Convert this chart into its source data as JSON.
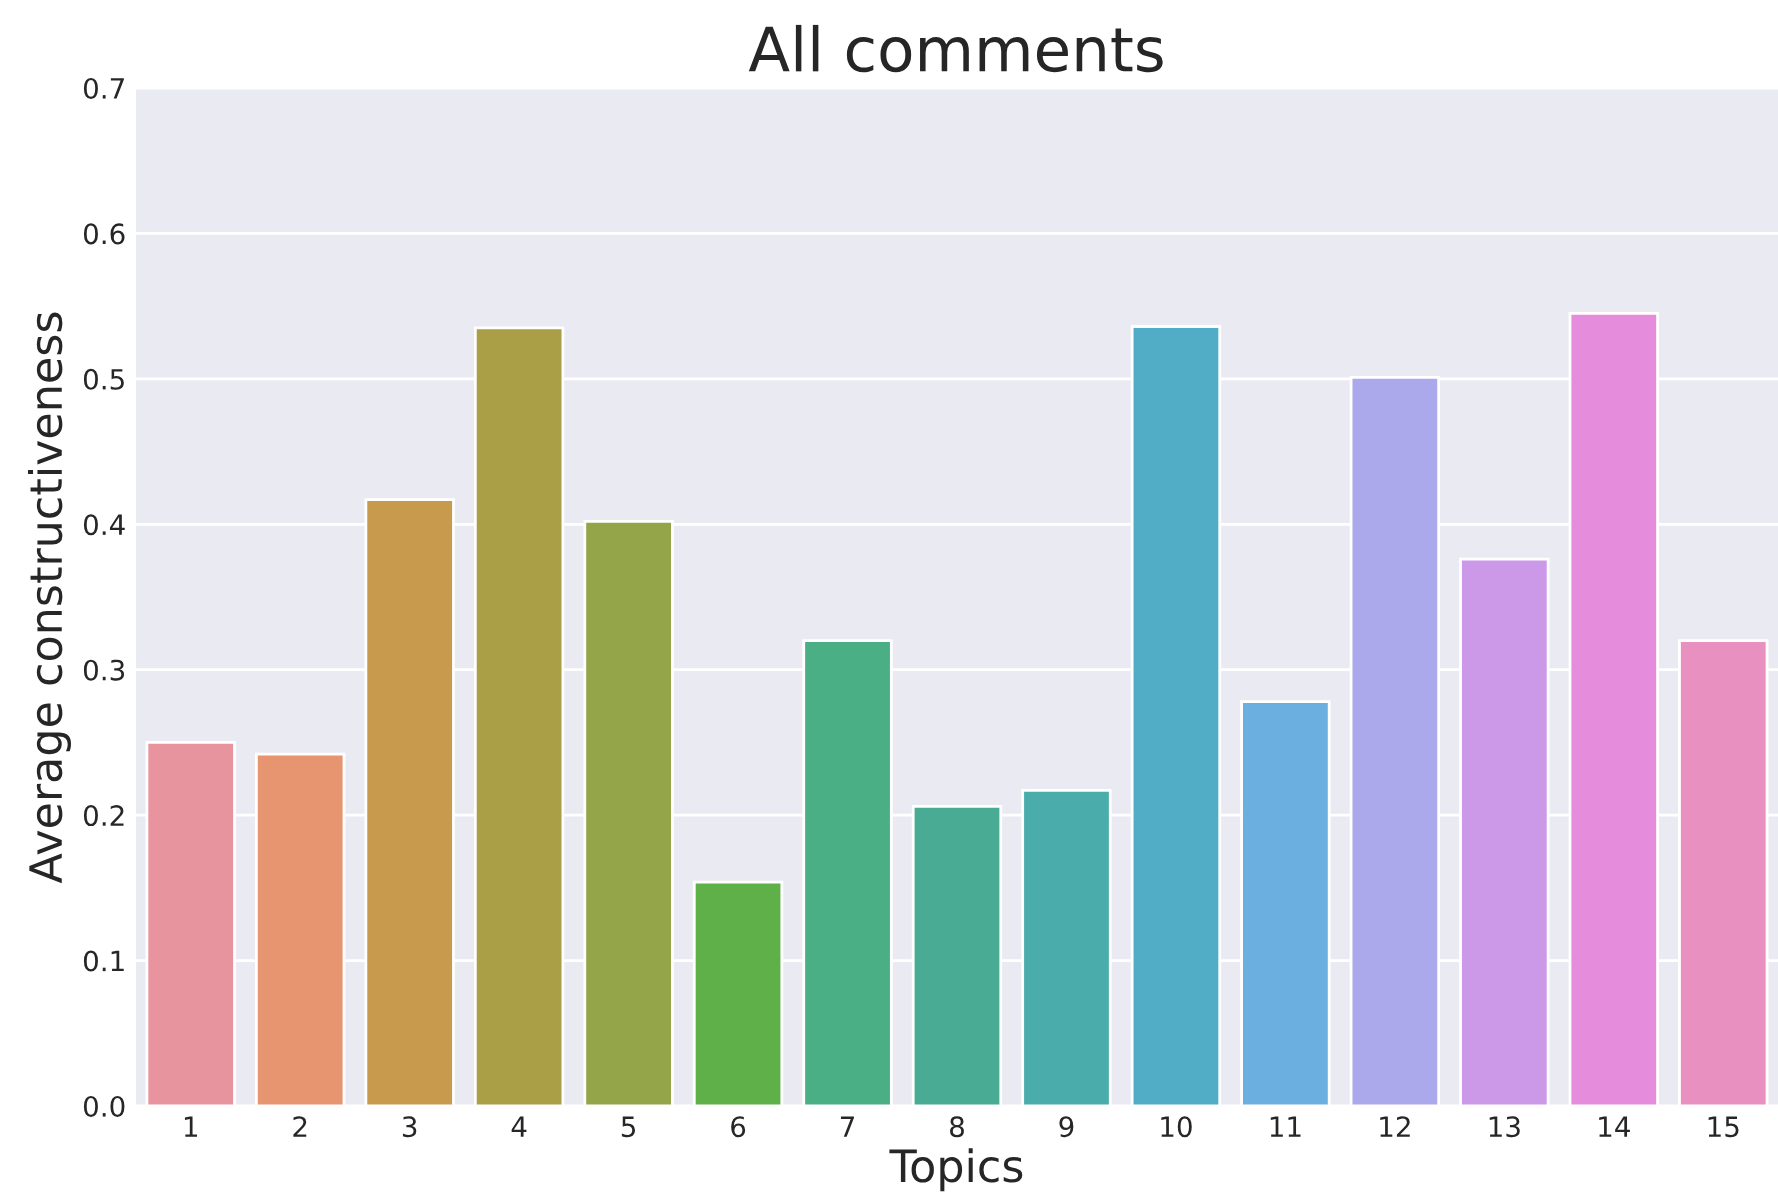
{
  "chart_data": {
    "type": "bar",
    "title": "All comments",
    "xlabel": "Topics",
    "ylabel": "Average constructiveness",
    "categories": [
      "1",
      "2",
      "3",
      "4",
      "5",
      "6",
      "7",
      "8",
      "9",
      "10",
      "11",
      "12",
      "13",
      "14",
      "15"
    ],
    "values": [
      0.25,
      0.242,
      0.417,
      0.535,
      0.402,
      0.154,
      0.32,
      0.206,
      0.217,
      0.536,
      0.278,
      0.501,
      0.376,
      0.545,
      0.32
    ],
    "colors": [
      "#e8949e",
      "#e69570",
      "#c89a4e",
      "#aa9e46",
      "#93a548",
      "#60b04a",
      "#4aaf85",
      "#4aab95",
      "#4badab",
      "#51adc5",
      "#6aafe0",
      "#aba9ec",
      "#cc99e8",
      "#e58ddc",
      "#e891c1"
    ],
    "ylim": [
      0,
      0.7
    ],
    "yticks": [
      {
        "value": 0,
        "label": "0.0"
      },
      {
        "value": 0.1,
        "label": "0.1"
      },
      {
        "value": 0.2,
        "label": "0.2"
      },
      {
        "value": 0.3,
        "label": "0.3"
      },
      {
        "value": 0.4,
        "label": "0.4"
      },
      {
        "value": 0.5,
        "label": "0.5"
      },
      {
        "value": 0.6,
        "label": "0.6"
      },
      {
        "value": 0.7,
        "label": "0.7"
      }
    ],
    "grid": "y"
  }
}
